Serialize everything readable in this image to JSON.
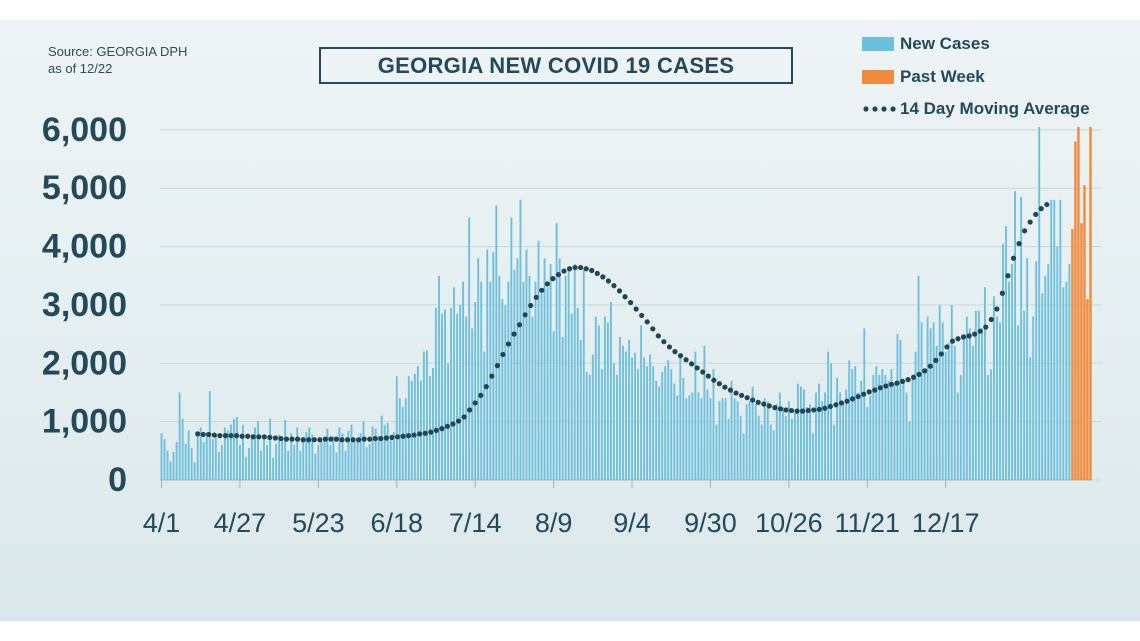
{
  "source": {
    "line1": "Source: GEORGIA DPH",
    "line2": "as of 12/22"
  },
  "colors": {
    "new_cases": "#6dbfdc",
    "past_week": "#f08a3c",
    "moving_avg": "#1f4654",
    "axis_text": "#24495a",
    "grid": "#c9d9de"
  },
  "chart_data": {
    "type": "bar",
    "title": "GEORGIA NEW COVID 19 CASES",
    "xlabel": "",
    "ylabel": "",
    "ylim": [
      0,
      6100
    ],
    "yticks": [
      0,
      1000,
      2000,
      3000,
      4000,
      5000,
      6000
    ],
    "ytick_labels": [
      "0",
      "1,000",
      "2,000",
      "3,000",
      "4,000",
      "5,000",
      "6,000"
    ],
    "xtick_labels": [
      "4/1",
      "4/27",
      "5/23",
      "6/18",
      "7/14",
      "8/9",
      "9/4",
      "9/30",
      "10/26",
      "11/21",
      "12/17"
    ],
    "xtick_day_index": [
      0,
      26,
      52,
      78,
      104,
      130,
      156,
      182,
      208,
      234,
      260
    ],
    "grid": true,
    "legend_position": "top-right",
    "legend": [
      "New Cases",
      "Past Week",
      "14 Day Moving Average"
    ],
    "series": [
      {
        "name": "New Cases",
        "type": "bar",
        "values": [
          800,
          700,
          500,
          320,
          480,
          650,
          1500,
          1050,
          620,
          850,
          550,
          300,
          800,
          900,
          650,
          820,
          1520,
          700,
          800,
          480,
          600,
          900,
          850,
          950,
          1050,
          1080,
          600,
          950,
          400,
          550,
          780,
          900,
          1010,
          500,
          720,
          600,
          1050,
          380,
          620,
          780,
          720,
          1030,
          500,
          800,
          600,
          900,
          500,
          650,
          820,
          900,
          780,
          450,
          600,
          700,
          660,
          880,
          600,
          750,
          470,
          900,
          800,
          500,
          840,
          950,
          720,
          660,
          800,
          1000,
          560,
          620,
          920,
          880,
          760,
          1100,
          940,
          980,
          700,
          820,
          1780,
          1400,
          1250,
          1400,
          1780,
          1700,
          1820,
          1950,
          1700,
          2200,
          2220,
          1780,
          1920,
          2950,
          3500,
          2850,
          2920,
          2000,
          2950,
          3300,
          2850,
          3000,
          3400,
          2800,
          4500,
          2600,
          3050,
          3800,
          3400,
          2200,
          3950,
          3400,
          3900,
          4700,
          3500,
          3100,
          3000,
          3400,
          4500,
          3600,
          3800,
          4800,
          3400,
          3950,
          3500,
          2800,
          3400,
          4100,
          3200,
          3800,
          3300,
          3700,
          2550,
          4400,
          3800,
          2450,
          3500,
          3600,
          2850,
          3700,
          2950,
          2400,
          3600,
          1850,
          1800,
          2150,
          2800,
          2650,
          1900,
          2800,
          2700,
          3050,
          2000,
          1800,
          2450,
          2300,
          2200,
          2400,
          2100,
          2180,
          1900,
          2650,
          2100,
          1950,
          2150,
          1950,
          1700,
          1600,
          1850,
          1950,
          2050,
          1900,
          1650,
          1450,
          2100,
          1750,
          1400,
          1450,
          1500,
          2200,
          1500,
          1400,
          2300,
          1550,
          1400,
          1900,
          950,
          1350,
          1400,
          1400,
          1050,
          1700,
          1400,
          1350,
          1100,
          800,
          1300,
          1350,
          1600,
          1300,
          1100,
          950,
          1400,
          1350,
          950,
          850,
          1300,
          1500,
          1250,
          1100,
          1350,
          1050,
          1150,
          1650,
          1600,
          1550,
          1250,
          1300,
          800,
          1500,
          1650,
          1350,
          1500,
          2200,
          2000,
          950,
          1750,
          1500,
          1300,
          1550,
          2050,
          1900,
          1950,
          1500,
          1700,
          2600,
          1250,
          1450,
          1800,
          1950,
          1800,
          1900,
          1800,
          1700,
          1900,
          1650,
          2500,
          2400,
          1700,
          1500,
          1000,
          1800,
          2200,
          3500,
          2700,
          1850,
          2800,
          2600,
          2700,
          2300,
          3000,
          2700,
          2200,
          2350,
          3000,
          2300,
          1500,
          1800,
          2500,
          2800,
          2600,
          2300,
          2900,
          2900,
          2600,
          3300,
          1800,
          1900,
          3150,
          2800,
          2700,
          4050,
          4350,
          3400,
          3700,
          4950,
          2650,
          4850,
          2900,
          3800,
          2100,
          2800,
          3750,
          6050,
          3200,
          3500,
          3700,
          4800,
          4800,
          4000,
          4800,
          3300,
          3400,
          3700
        ]
      },
      {
        "name": "Past Week",
        "type": "bar",
        "values": [
          4300,
          5800,
          6050,
          4400,
          5050,
          3100,
          6050
        ]
      },
      {
        "name": "14 Day Moving Average",
        "type": "dotted-line",
        "values": [
          790,
          780,
          780,
          770,
          760,
          760,
          760,
          760,
          750,
          750,
          740,
          740,
          740,
          730,
          720,
          710,
          700,
          700,
          700,
          690,
          690,
          690,
          690,
          700,
          700,
          700,
          690,
          690,
          690,
          690,
          700,
          700,
          710,
          710,
          720,
          730,
          740,
          750,
          760,
          770,
          790,
          800,
          820,
          850,
          880,
          920,
          960,
          1010,
          1080,
          1200,
          1320,
          1450,
          1600,
          1780,
          1960,
          2150,
          2330,
          2500,
          2660,
          2830,
          2990,
          3130,
          3250,
          3360,
          3450,
          3520,
          3580,
          3620,
          3640,
          3640,
          3620,
          3590,
          3540,
          3480,
          3410,
          3330,
          3240,
          3140,
          3040,
          2930,
          2820,
          2710,
          2590,
          2470,
          2370,
          2280,
          2200,
          2130,
          2060,
          1990,
          1920,
          1850,
          1780,
          1710,
          1650,
          1590,
          1540,
          1490,
          1450,
          1410,
          1370,
          1330,
          1300,
          1270,
          1240,
          1220,
          1200,
          1190,
          1180,
          1180,
          1190,
          1200,
          1210,
          1230,
          1260,
          1290,
          1320,
          1350,
          1390,
          1430,
          1470,
          1510,
          1540,
          1580,
          1610,
          1640,
          1660,
          1690,
          1720,
          1760,
          1810,
          1870,
          1950,
          2050,
          2160,
          2280,
          2380,
          2420,
          2450,
          2470,
          2500,
          2550,
          2620,
          2750,
          2930,
          3200,
          3500,
          3800,
          4050,
          4270,
          4420,
          4550,
          4650,
          4720
        ]
      }
    ]
  }
}
